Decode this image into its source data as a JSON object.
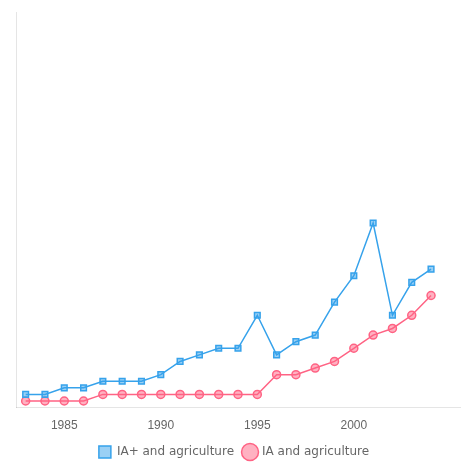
{
  "chart_data": {
    "type": "line",
    "x": [
      1983,
      1984,
      1985,
      1986,
      1987,
      1988,
      1989,
      1990,
      1991,
      1992,
      1993,
      1994,
      1995,
      1996,
      1997,
      1998,
      1999,
      2000,
      2001,
      2002,
      2003,
      2004
    ],
    "series": [
      {
        "name": "IA+ and agriculture",
        "marker": "square",
        "values": [
          2,
          2,
          3,
          3,
          4,
          4,
          4,
          5,
          7,
          8,
          9,
          9,
          14,
          8,
          10,
          11,
          16,
          20,
          28,
          14,
          19,
          21
        ]
      },
      {
        "name": "IA and agriculture",
        "marker": "circle",
        "values": [
          1,
          1,
          1,
          1,
          2,
          2,
          2,
          2,
          2,
          2,
          2,
          2,
          2,
          5,
          5,
          6,
          7,
          9,
          11,
          12,
          14,
          17
        ]
      }
    ],
    "xlim": [
      1982.5,
      2005.5
    ],
    "xticks": [
      1985,
      1990,
      1995,
      2000
    ],
    "ylim": [
      0,
      60
    ],
    "grid": false,
    "legend": "bottom",
    "tick_labels": "x"
  }
}
